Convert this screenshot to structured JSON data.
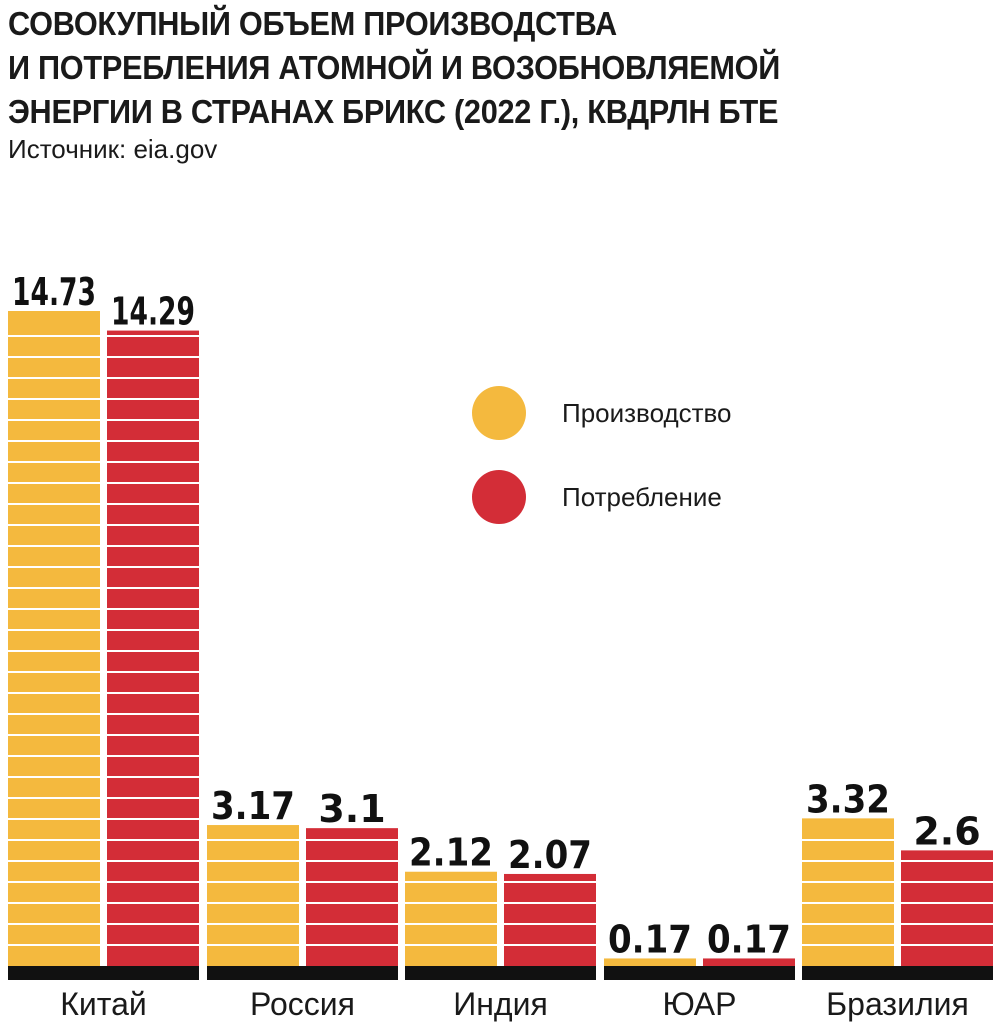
{
  "header": {
    "title_lines": [
      "СОВОКУПНЫЙ ОБЪЕМ ПРОИЗВОДСТВА",
      "И ПОТРЕБЛЕНИЯ АТОМНОЙ И ВОЗОБНОВЛЯЕМОЙ",
      "ЭНЕРГИИ В СТРАНАХ БРИКС (2022 Г.), КВДРЛН БТЕ"
    ],
    "source": "Источник: eia.gov"
  },
  "colors": {
    "production": "#F4B93E",
    "consumption": "#D32D37",
    "baseline": "#111111",
    "stripe": "#ffffff"
  },
  "chart_data": {
    "type": "bar",
    "title": "СОВОКУПНЫЙ ОБЪЕМ ПРОИЗВОДСТВА И ПОТРЕБЛЕНИЯ АТОМНОЙ И ВОЗОБНОВЛЯЕМОЙ ЭНЕРГИИ В СТРАНАХ БРИКС (2022 Г.), КВДРЛН БТЕ",
    "categories": [
      "Китай",
      "Россия",
      "Индия",
      "ЮАР",
      "Бразилия"
    ],
    "series": [
      {
        "name": "Производство",
        "values": [
          14.73,
          3.17,
          2.12,
          0.17,
          3.32
        ],
        "labels": [
          "14.73",
          "3.17",
          "2.12",
          "0.17",
          "3.32"
        ]
      },
      {
        "name": "Потребление",
        "values": [
          14.29,
          3.1,
          2.07,
          0.17,
          2.6
        ],
        "labels": [
          "14.29",
          "3.1",
          "2.07",
          "0.17",
          "2.6"
        ]
      }
    ],
    "xlabel": "",
    "ylabel": "",
    "ylim": [
      0,
      15
    ],
    "grid": false,
    "legend_position": "top-right"
  }
}
